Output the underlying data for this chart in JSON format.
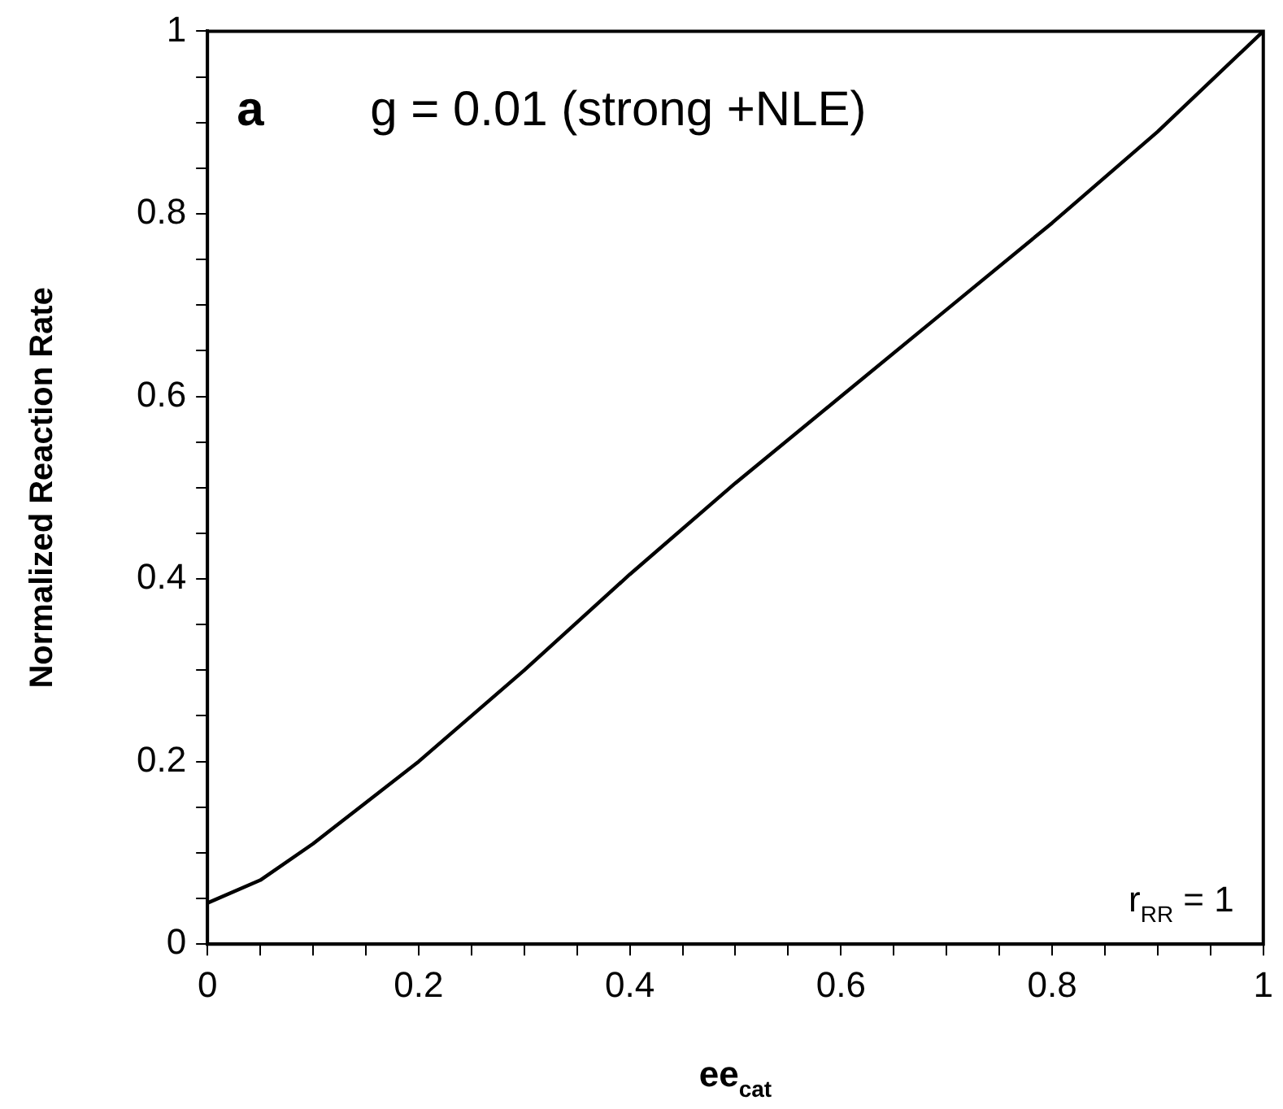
{
  "chart_data": {
    "type": "line",
    "xlabel": "ee$_{cat}$",
    "ylabel": "Normalized Reaction Rate",
    "annotations": [
      "a",
      "g = 0.01 (strong +NLE)",
      "r$_{RR}$ = 1"
    ],
    "series": [
      {
        "color": "#000000",
        "x": [
          0,
          0.05,
          0.1,
          0.15,
          0.2,
          0.3,
          0.4,
          0.5,
          0.6,
          0.7,
          0.8,
          0.9,
          1
        ],
        "values": [
          0.045,
          0.07,
          0.11,
          0.155,
          0.2,
          0.3,
          0.405,
          0.505,
          0.6,
          0.695,
          0.79,
          0.89,
          1
        ]
      }
    ],
    "xlim": [
      0,
      1
    ],
    "ylim": [
      0,
      1
    ],
    "xticks": [
      0,
      {
        "value": 0.05,
        "label": null
      },
      {
        "value": 0.1,
        "label": null
      },
      {
        "value": 0.15,
        "label": null
      },
      0.2,
      {
        "value": 0.25,
        "label": null
      },
      {
        "value": 0.3,
        "label": null
      },
      {
        "value": 0.35,
        "label": null
      },
      0.4,
      {
        "value": 0.45,
        "label": null
      },
      {
        "value": 0.5,
        "label": null
      },
      {
        "value": 0.55,
        "label": null
      },
      0.6,
      {
        "value": 0.65,
        "label": null
      },
      {
        "value": 0.7,
        "label": null
      },
      {
        "value": 0.75,
        "label": null
      },
      0.8,
      {
        "value": 0.85,
        "label": null
      },
      {
        "value": 0.9,
        "label": null
      },
      {
        "value": 0.95,
        "label": null
      },
      1
    ],
    "yticks": [
      0,
      {
        "value": 0.05,
        "label": null
      },
      {
        "value": 0.1,
        "label": null
      },
      {
        "value": 0.15,
        "label": null
      },
      0.2,
      {
        "value": 0.25,
        "label": null
      },
      {
        "value": 0.3,
        "label": null
      },
      {
        "value": 0.35,
        "label": null
      },
      0.4,
      {
        "value": 0.45,
        "label": null
      },
      {
        "value": 0.5,
        "label": null
      },
      {
        "value": 0.55,
        "label": null
      },
      0.6,
      {
        "value": 0.65,
        "label": null
      },
      {
        "value": 0.7,
        "label": null
      },
      {
        "value": 0.75,
        "label": null
      },
      0.8,
      {
        "value": 0.85,
        "label": null
      },
      {
        "value": 0.9,
        "label": null
      },
      {
        "value": 0.95,
        "label": null
      },
      1
    ],
    "grid": false,
    "legend": false,
    "marker": "none",
    "line_style": "solid"
  }
}
